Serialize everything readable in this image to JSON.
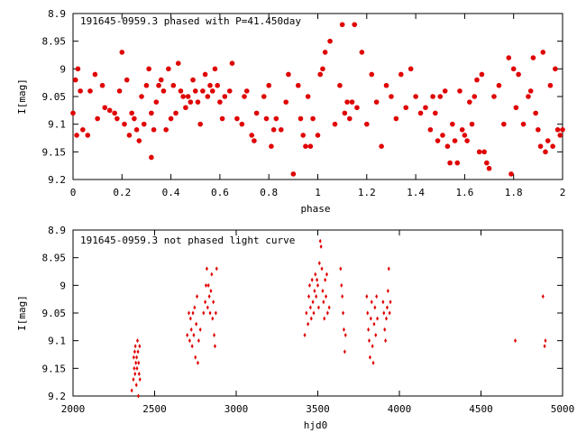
{
  "colors": {
    "marker": "#e00000",
    "axis": "#000000",
    "background": "#ffffff"
  },
  "chart_data": [
    {
      "type": "scatter",
      "title": "191645-0959.3 phased with P=41.450day",
      "xlabel": "phase",
      "ylabel": "I[mag]",
      "xlim": [
        0,
        2
      ],
      "ylim": [
        9.2,
        8.9
      ],
      "y_axis_inverted": true,
      "xticks": [
        "0",
        "0.2",
        "0.4",
        "0.6",
        "0.8",
        "1",
        "1.2",
        "1.4",
        "1.6",
        "1.8",
        "2"
      ],
      "yticks": [
        "8.9",
        "8.95",
        "9",
        "9.05",
        "9.1",
        "9.15",
        "9.2"
      ],
      "marker": "filled-circle",
      "points": [
        [
          0.0,
          9.08
        ],
        [
          0.01,
          9.02
        ],
        [
          0.015,
          9.12
        ],
        [
          0.02,
          9.0
        ],
        [
          0.03,
          9.04
        ],
        [
          0.04,
          9.11
        ],
        [
          0.06,
          9.12
        ],
        [
          0.07,
          9.04
        ],
        [
          0.09,
          9.01
        ],
        [
          0.1,
          9.09
        ],
        [
          0.12,
          9.03
        ],
        [
          0.13,
          9.07
        ],
        [
          0.15,
          9.075
        ],
        [
          0.17,
          9.08
        ],
        [
          0.18,
          9.09
        ],
        [
          0.19,
          9.04
        ],
        [
          0.2,
          8.97
        ],
        [
          0.21,
          9.1
        ],
        [
          0.22,
          9.02
        ],
        [
          0.23,
          9.12
        ],
        [
          0.24,
          9.08
        ],
        [
          0.25,
          9.09
        ],
        [
          0.26,
          9.11
        ],
        [
          0.27,
          9.13
        ],
        [
          0.28,
          9.05
        ],
        [
          0.29,
          9.1
        ],
        [
          0.3,
          9.03
        ],
        [
          0.31,
          9.0
        ],
        [
          0.32,
          9.16
        ],
        [
          0.32,
          9.08
        ],
        [
          0.33,
          9.11
        ],
        [
          0.34,
          9.06
        ],
        [
          0.35,
          9.03
        ],
        [
          0.36,
          9.02
        ],
        [
          0.37,
          9.04
        ],
        [
          0.38,
          9.11
        ],
        [
          0.39,
          9.0
        ],
        [
          0.4,
          9.09
        ],
        [
          0.41,
          9.03
        ],
        [
          0.42,
          9.08
        ],
        [
          0.43,
          8.99
        ],
        [
          0.44,
          9.04
        ],
        [
          0.45,
          9.05
        ],
        [
          0.46,
          9.07
        ],
        [
          0.47,
          9.05
        ],
        [
          0.48,
          9.06
        ],
        [
          0.49,
          9.02
        ],
        [
          0.5,
          9.04
        ],
        [
          0.51,
          9.06
        ],
        [
          0.52,
          9.1
        ],
        [
          0.53,
          9.04
        ],
        [
          0.54,
          9.01
        ],
        [
          0.55,
          9.05
        ],
        [
          0.56,
          9.03
        ],
        [
          0.57,
          9.04
        ],
        [
          0.58,
          9.0
        ],
        [
          0.59,
          9.03
        ],
        [
          0.6,
          9.06
        ],
        [
          0.61,
          9.09
        ],
        [
          0.62,
          9.05
        ],
        [
          0.64,
          9.04
        ],
        [
          0.65,
          8.99
        ],
        [
          0.67,
          9.09
        ],
        [
          0.69,
          9.1
        ],
        [
          0.7,
          9.05
        ],
        [
          0.71,
          9.04
        ],
        [
          0.73,
          9.12
        ],
        [
          0.74,
          9.13
        ],
        [
          0.75,
          9.08
        ],
        [
          0.78,
          9.05
        ],
        [
          0.79,
          9.09
        ],
        [
          0.8,
          9.03
        ],
        [
          0.81,
          9.14
        ],
        [
          0.82,
          9.11
        ],
        [
          0.83,
          9.09
        ],
        [
          0.85,
          9.11
        ],
        [
          0.87,
          9.06
        ],
        [
          0.88,
          9.01
        ],
        [
          0.9,
          9.19
        ],
        [
          0.92,
          9.03
        ],
        [
          0.93,
          9.09
        ],
        [
          0.94,
          9.12
        ],
        [
          0.95,
          9.14
        ],
        [
          0.96,
          9.05
        ],
        [
          0.97,
          9.14
        ],
        [
          0.98,
          9.09
        ],
        [
          1.0,
          9.12
        ],
        [
          1.01,
          9.01
        ],
        [
          1.02,
          9.0
        ],
        [
          1.03,
          8.97
        ],
        [
          1.05,
          8.95
        ],
        [
          1.07,
          9.1
        ],
        [
          1.09,
          9.03
        ],
        [
          1.1,
          8.92
        ],
        [
          1.11,
          9.08
        ],
        [
          1.12,
          9.06
        ],
        [
          1.13,
          9.09
        ],
        [
          1.14,
          9.06
        ],
        [
          1.15,
          8.92
        ],
        [
          1.16,
          9.07
        ],
        [
          1.18,
          8.97
        ],
        [
          1.2,
          9.1
        ],
        [
          1.22,
          9.01
        ],
        [
          1.24,
          9.06
        ],
        [
          1.26,
          9.14
        ],
        [
          1.28,
          9.03
        ],
        [
          1.3,
          9.05
        ],
        [
          1.32,
          9.09
        ],
        [
          1.34,
          9.01
        ],
        [
          1.36,
          9.07
        ],
        [
          1.38,
          9.0
        ],
        [
          1.4,
          9.05
        ],
        [
          1.42,
          9.08
        ],
        [
          1.44,
          9.07
        ],
        [
          1.46,
          9.11
        ],
        [
          1.47,
          9.05
        ],
        [
          1.48,
          9.08
        ],
        [
          1.49,
          9.13
        ],
        [
          1.5,
          9.05
        ],
        [
          1.51,
          9.12
        ],
        [
          1.52,
          9.04
        ],
        [
          1.53,
          9.14
        ],
        [
          1.54,
          9.17
        ],
        [
          1.55,
          9.1
        ],
        [
          1.56,
          9.13
        ],
        [
          1.57,
          9.17
        ],
        [
          1.58,
          9.04
        ],
        [
          1.59,
          9.11
        ],
        [
          1.6,
          9.12
        ],
        [
          1.61,
          9.13
        ],
        [
          1.62,
          9.06
        ],
        [
          1.63,
          9.1
        ],
        [
          1.64,
          9.05
        ],
        [
          1.65,
          9.02
        ],
        [
          1.66,
          9.15
        ],
        [
          1.67,
          9.01
        ],
        [
          1.68,
          9.15
        ],
        [
          1.69,
          9.17
        ],
        [
          1.7,
          9.18
        ],
        [
          1.72,
          9.05
        ],
        [
          1.74,
          9.03
        ],
        [
          1.76,
          9.1
        ],
        [
          1.78,
          8.98
        ],
        [
          1.79,
          9.19
        ],
        [
          1.8,
          9.0
        ],
        [
          1.81,
          9.07
        ],
        [
          1.82,
          9.01
        ],
        [
          1.84,
          9.1
        ],
        [
          1.86,
          9.05
        ],
        [
          1.87,
          9.04
        ],
        [
          1.88,
          8.98
        ],
        [
          1.89,
          9.08
        ],
        [
          1.9,
          9.11
        ],
        [
          1.91,
          9.14
        ],
        [
          1.92,
          8.97
        ],
        [
          1.93,
          9.15
        ],
        [
          1.94,
          9.13
        ],
        [
          1.95,
          9.03
        ],
        [
          1.96,
          9.14
        ],
        [
          1.97,
          9.0
        ],
        [
          1.98,
          9.11
        ],
        [
          1.99,
          9.12
        ],
        [
          2.0,
          9.11
        ]
      ]
    },
    {
      "type": "scatter",
      "title": "191645-0959.3 not phased light curve",
      "xlabel": "hjd0",
      "ylabel": "I[mag]",
      "xlim": [
        2000,
        5000
      ],
      "ylim": [
        9.2,
        8.9
      ],
      "y_axis_inverted": true,
      "xticks": [
        "2000",
        "2500",
        "3000",
        "3500",
        "4000",
        "4500",
        "5000"
      ],
      "yticks": [
        "8.9",
        "8.95",
        "9",
        "9.05",
        "9.1",
        "9.15",
        "9.2"
      ],
      "marker": "small-filled-diamond",
      "points": [
        [
          2360,
          9.19
        ],
        [
          2370,
          9.17
        ],
        [
          2372,
          9.13
        ],
        [
          2375,
          9.15
        ],
        [
          2378,
          9.12
        ],
        [
          2380,
          9.16
        ],
        [
          2382,
          9.11
        ],
        [
          2385,
          9.14
        ],
        [
          2388,
          9.18
        ],
        [
          2390,
          9.13
        ],
        [
          2392,
          9.15
        ],
        [
          2395,
          9.1
        ],
        [
          2398,
          9.12
        ],
        [
          2400,
          9.2
        ],
        [
          2402,
          9.14
        ],
        [
          2405,
          9.16
        ],
        [
          2408,
          9.11
        ],
        [
          2410,
          9.17
        ],
        [
          2700,
          9.09
        ],
        [
          2710,
          9.05
        ],
        [
          2715,
          9.1
        ],
        [
          2720,
          9.06
        ],
        [
          2725,
          9.08
        ],
        [
          2730,
          9.11
        ],
        [
          2735,
          9.05
        ],
        [
          2740,
          9.09
        ],
        [
          2745,
          9.04
        ],
        [
          2750,
          9.13
        ],
        [
          2755,
          9.07
        ],
        [
          2760,
          9.02
        ],
        [
          2765,
          9.14
        ],
        [
          2770,
          9.1
        ],
        [
          2780,
          9.08
        ],
        [
          2800,
          9.05
        ],
        [
          2810,
          9.03
        ],
        [
          2815,
          9.0
        ],
        [
          2820,
          8.97
        ],
        [
          2825,
          9.04
        ],
        [
          2830,
          9.0
        ],
        [
          2835,
          9.02
        ],
        [
          2840,
          9.05
        ],
        [
          2845,
          9.01
        ],
        [
          2850,
          8.98
        ],
        [
          2855,
          9.06
        ],
        [
          2860,
          9.03
        ],
        [
          2865,
          9.09
        ],
        [
          2870,
          9.11
        ],
        [
          2875,
          9.05
        ],
        [
          2880,
          8.97
        ],
        [
          3420,
          9.09
        ],
        [
          3430,
          9.05
        ],
        [
          3440,
          9.07
        ],
        [
          3445,
          9.02
        ],
        [
          3450,
          9.0
        ],
        [
          3455,
          9.04
        ],
        [
          3460,
          9.06
        ],
        [
          3465,
          8.99
        ],
        [
          3470,
          9.03
        ],
        [
          3475,
          9.05
        ],
        [
          3480,
          9.01
        ],
        [
          3485,
          8.98
        ],
        [
          3490,
          9.02
        ],
        [
          3495,
          8.99
        ],
        [
          3500,
          9.0
        ],
        [
          3505,
          9.04
        ],
        [
          3510,
          8.96
        ],
        [
          3515,
          8.92
        ],
        [
          3520,
          8.93
        ],
        [
          3525,
          8.97
        ],
        [
          3530,
          9.01
        ],
        [
          3535,
          9.03
        ],
        [
          3540,
          9.06
        ],
        [
          3545,
          8.99
        ],
        [
          3550,
          9.02
        ],
        [
          3555,
          8.98
        ],
        [
          3560,
          9.05
        ],
        [
          3570,
          9.04
        ],
        [
          3640,
          8.97
        ],
        [
          3645,
          9.0
        ],
        [
          3650,
          9.02
        ],
        [
          3655,
          9.05
        ],
        [
          3660,
          9.08
        ],
        [
          3665,
          9.12
        ],
        [
          3670,
          9.09
        ],
        [
          3800,
          9.02
        ],
        [
          3805,
          9.05
        ],
        [
          3810,
          9.08
        ],
        [
          3815,
          9.1
        ],
        [
          3820,
          9.13
        ],
        [
          3825,
          9.06
        ],
        [
          3830,
          9.03
        ],
        [
          3835,
          9.11
        ],
        [
          3840,
          9.14
        ],
        [
          3845,
          9.07
        ],
        [
          3850,
          9.04
        ],
        [
          3855,
          9.09
        ],
        [
          3860,
          9.02
        ],
        [
          3865,
          9.06
        ],
        [
          3900,
          9.03
        ],
        [
          3905,
          9.05
        ],
        [
          3910,
          9.08
        ],
        [
          3915,
          9.1
        ],
        [
          3920,
          9.06
        ],
        [
          3925,
          9.04
        ],
        [
          3930,
          9.01
        ],
        [
          3935,
          8.97
        ],
        [
          3940,
          9.05
        ],
        [
          3945,
          9.03
        ],
        [
          4710,
          9.1
        ],
        [
          4880,
          9.02
        ],
        [
          4890,
          9.11
        ],
        [
          4895,
          9.1
        ]
      ]
    }
  ]
}
